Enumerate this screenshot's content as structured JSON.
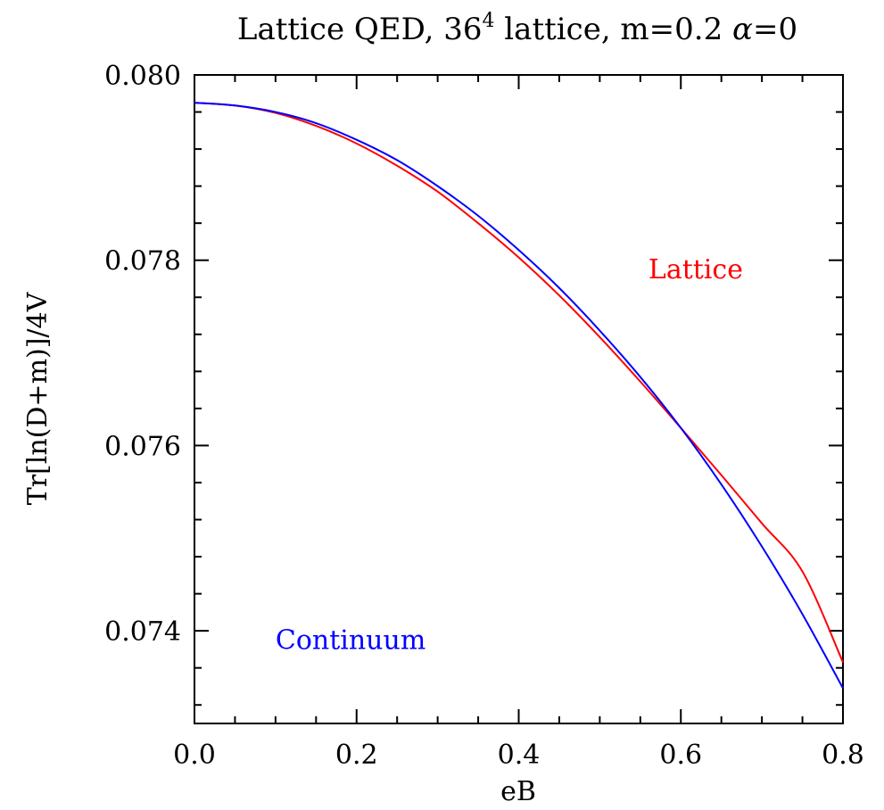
{
  "chart_data": {
    "type": "line",
    "title": {
      "pre": "Lattice QED, 36",
      "sup": "4",
      "post": " lattice, m=0.2 ",
      "greek": "α",
      "tail": "=0"
    },
    "xlabel": "eB",
    "ylabel": "Tr[ln(D+m)]/4V",
    "xlim": [
      0.0,
      0.8
    ],
    "ylim": [
      0.073,
      0.08
    ],
    "x_ticks": [
      "0.0",
      "0.2",
      "0.4",
      "0.6",
      "0.8"
    ],
    "y_ticks": [
      "0.074",
      "0.076",
      "0.078",
      "0.080"
    ],
    "grid": false,
    "series": [
      {
        "name": "Lattice",
        "color": "#ff0000",
        "x": [
          0.0,
          0.05,
          0.1,
          0.15,
          0.2,
          0.25,
          0.3,
          0.35,
          0.4,
          0.45,
          0.5,
          0.55,
          0.6,
          0.65,
          0.7,
          0.75,
          0.8
        ],
        "y": [
          0.0797,
          0.07967,
          0.07959,
          0.07945,
          0.07926,
          0.07902,
          0.07874,
          0.0784,
          0.07803,
          0.07762,
          0.07717,
          0.07669,
          0.07619,
          0.07568,
          0.07516,
          0.07464,
          0.07366
        ]
      },
      {
        "name": "Continuum",
        "color": "#0000ff",
        "x": [
          0.0,
          0.05,
          0.1,
          0.15,
          0.2,
          0.25,
          0.3,
          0.35,
          0.4,
          0.45,
          0.5,
          0.55,
          0.6,
          0.65,
          0.7,
          0.75,
          0.8
        ],
        "y": [
          0.0797,
          0.07967,
          0.0796,
          0.07948,
          0.0793,
          0.07908,
          0.0788,
          0.07848,
          0.07811,
          0.0777,
          0.07724,
          0.07674,
          0.07619,
          0.07558,
          0.07491,
          0.07418,
          0.07338
        ]
      }
    ],
    "annotations": [
      {
        "text": "Lattice",
        "color": "#ff0000",
        "x": 0.56,
        "y": 0.0779
      },
      {
        "text": "Continuum",
        "color": "#0000ff",
        "x": 0.1,
        "y": 0.0739
      }
    ]
  }
}
